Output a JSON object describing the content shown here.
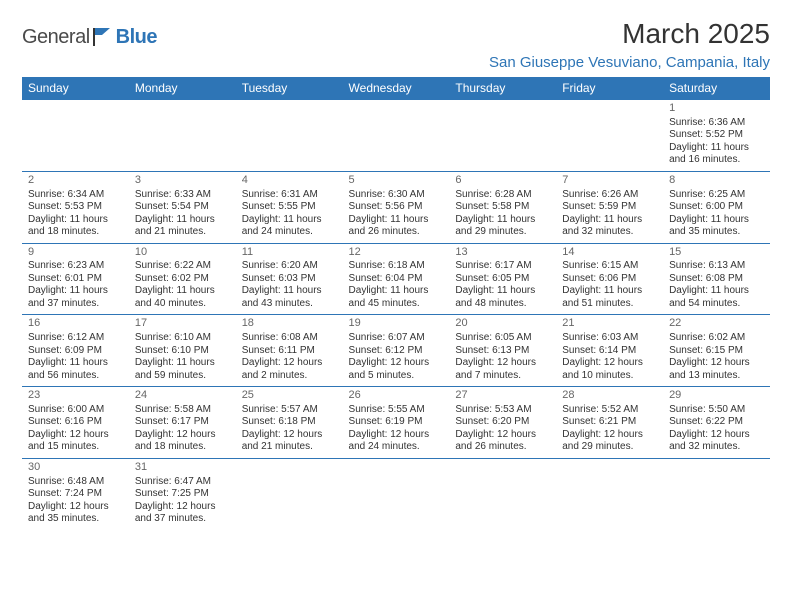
{
  "brand": {
    "name1": "General",
    "name2": "Blue"
  },
  "title": {
    "month": "March 2025",
    "location": "San Giuseppe Vesuviano, Campania, Italy"
  },
  "colors": {
    "header_bg": "#2e75b6",
    "header_fg": "#ffffff",
    "border": "#2e75b6",
    "text": "#333333",
    "daynum": "#666666"
  },
  "weekdays": [
    "Sunday",
    "Monday",
    "Tuesday",
    "Wednesday",
    "Thursday",
    "Friday",
    "Saturday"
  ],
  "weeks": [
    [
      null,
      null,
      null,
      null,
      null,
      null,
      {
        "d": "1",
        "l1": "Sunrise: 6:36 AM",
        "l2": "Sunset: 5:52 PM",
        "l3": "Daylight: 11 hours",
        "l4": "and 16 minutes."
      }
    ],
    [
      {
        "d": "2",
        "l1": "Sunrise: 6:34 AM",
        "l2": "Sunset: 5:53 PM",
        "l3": "Daylight: 11 hours",
        "l4": "and 18 minutes."
      },
      {
        "d": "3",
        "l1": "Sunrise: 6:33 AM",
        "l2": "Sunset: 5:54 PM",
        "l3": "Daylight: 11 hours",
        "l4": "and 21 minutes."
      },
      {
        "d": "4",
        "l1": "Sunrise: 6:31 AM",
        "l2": "Sunset: 5:55 PM",
        "l3": "Daylight: 11 hours",
        "l4": "and 24 minutes."
      },
      {
        "d": "5",
        "l1": "Sunrise: 6:30 AM",
        "l2": "Sunset: 5:56 PM",
        "l3": "Daylight: 11 hours",
        "l4": "and 26 minutes."
      },
      {
        "d": "6",
        "l1": "Sunrise: 6:28 AM",
        "l2": "Sunset: 5:58 PM",
        "l3": "Daylight: 11 hours",
        "l4": "and 29 minutes."
      },
      {
        "d": "7",
        "l1": "Sunrise: 6:26 AM",
        "l2": "Sunset: 5:59 PM",
        "l3": "Daylight: 11 hours",
        "l4": "and 32 minutes."
      },
      {
        "d": "8",
        "l1": "Sunrise: 6:25 AM",
        "l2": "Sunset: 6:00 PM",
        "l3": "Daylight: 11 hours",
        "l4": "and 35 minutes."
      }
    ],
    [
      {
        "d": "9",
        "l1": "Sunrise: 6:23 AM",
        "l2": "Sunset: 6:01 PM",
        "l3": "Daylight: 11 hours",
        "l4": "and 37 minutes."
      },
      {
        "d": "10",
        "l1": "Sunrise: 6:22 AM",
        "l2": "Sunset: 6:02 PM",
        "l3": "Daylight: 11 hours",
        "l4": "and 40 minutes."
      },
      {
        "d": "11",
        "l1": "Sunrise: 6:20 AM",
        "l2": "Sunset: 6:03 PM",
        "l3": "Daylight: 11 hours",
        "l4": "and 43 minutes."
      },
      {
        "d": "12",
        "l1": "Sunrise: 6:18 AM",
        "l2": "Sunset: 6:04 PM",
        "l3": "Daylight: 11 hours",
        "l4": "and 45 minutes."
      },
      {
        "d": "13",
        "l1": "Sunrise: 6:17 AM",
        "l2": "Sunset: 6:05 PM",
        "l3": "Daylight: 11 hours",
        "l4": "and 48 minutes."
      },
      {
        "d": "14",
        "l1": "Sunrise: 6:15 AM",
        "l2": "Sunset: 6:06 PM",
        "l3": "Daylight: 11 hours",
        "l4": "and 51 minutes."
      },
      {
        "d": "15",
        "l1": "Sunrise: 6:13 AM",
        "l2": "Sunset: 6:08 PM",
        "l3": "Daylight: 11 hours",
        "l4": "and 54 minutes."
      }
    ],
    [
      {
        "d": "16",
        "l1": "Sunrise: 6:12 AM",
        "l2": "Sunset: 6:09 PM",
        "l3": "Daylight: 11 hours",
        "l4": "and 56 minutes."
      },
      {
        "d": "17",
        "l1": "Sunrise: 6:10 AM",
        "l2": "Sunset: 6:10 PM",
        "l3": "Daylight: 11 hours",
        "l4": "and 59 minutes."
      },
      {
        "d": "18",
        "l1": "Sunrise: 6:08 AM",
        "l2": "Sunset: 6:11 PM",
        "l3": "Daylight: 12 hours",
        "l4": "and 2 minutes."
      },
      {
        "d": "19",
        "l1": "Sunrise: 6:07 AM",
        "l2": "Sunset: 6:12 PM",
        "l3": "Daylight: 12 hours",
        "l4": "and 5 minutes."
      },
      {
        "d": "20",
        "l1": "Sunrise: 6:05 AM",
        "l2": "Sunset: 6:13 PM",
        "l3": "Daylight: 12 hours",
        "l4": "and 7 minutes."
      },
      {
        "d": "21",
        "l1": "Sunrise: 6:03 AM",
        "l2": "Sunset: 6:14 PM",
        "l3": "Daylight: 12 hours",
        "l4": "and 10 minutes."
      },
      {
        "d": "22",
        "l1": "Sunrise: 6:02 AM",
        "l2": "Sunset: 6:15 PM",
        "l3": "Daylight: 12 hours",
        "l4": "and 13 minutes."
      }
    ],
    [
      {
        "d": "23",
        "l1": "Sunrise: 6:00 AM",
        "l2": "Sunset: 6:16 PM",
        "l3": "Daylight: 12 hours",
        "l4": "and 15 minutes."
      },
      {
        "d": "24",
        "l1": "Sunrise: 5:58 AM",
        "l2": "Sunset: 6:17 PM",
        "l3": "Daylight: 12 hours",
        "l4": "and 18 minutes."
      },
      {
        "d": "25",
        "l1": "Sunrise: 5:57 AM",
        "l2": "Sunset: 6:18 PM",
        "l3": "Daylight: 12 hours",
        "l4": "and 21 minutes."
      },
      {
        "d": "26",
        "l1": "Sunrise: 5:55 AM",
        "l2": "Sunset: 6:19 PM",
        "l3": "Daylight: 12 hours",
        "l4": "and 24 minutes."
      },
      {
        "d": "27",
        "l1": "Sunrise: 5:53 AM",
        "l2": "Sunset: 6:20 PM",
        "l3": "Daylight: 12 hours",
        "l4": "and 26 minutes."
      },
      {
        "d": "28",
        "l1": "Sunrise: 5:52 AM",
        "l2": "Sunset: 6:21 PM",
        "l3": "Daylight: 12 hours",
        "l4": "and 29 minutes."
      },
      {
        "d": "29",
        "l1": "Sunrise: 5:50 AM",
        "l2": "Sunset: 6:22 PM",
        "l3": "Daylight: 12 hours",
        "l4": "and 32 minutes."
      }
    ],
    [
      {
        "d": "30",
        "l1": "Sunrise: 6:48 AM",
        "l2": "Sunset: 7:24 PM",
        "l3": "Daylight: 12 hours",
        "l4": "and 35 minutes."
      },
      {
        "d": "31",
        "l1": "Sunrise: 6:47 AM",
        "l2": "Sunset: 7:25 PM",
        "l3": "Daylight: 12 hours",
        "l4": "and 37 minutes."
      },
      null,
      null,
      null,
      null,
      null
    ]
  ]
}
